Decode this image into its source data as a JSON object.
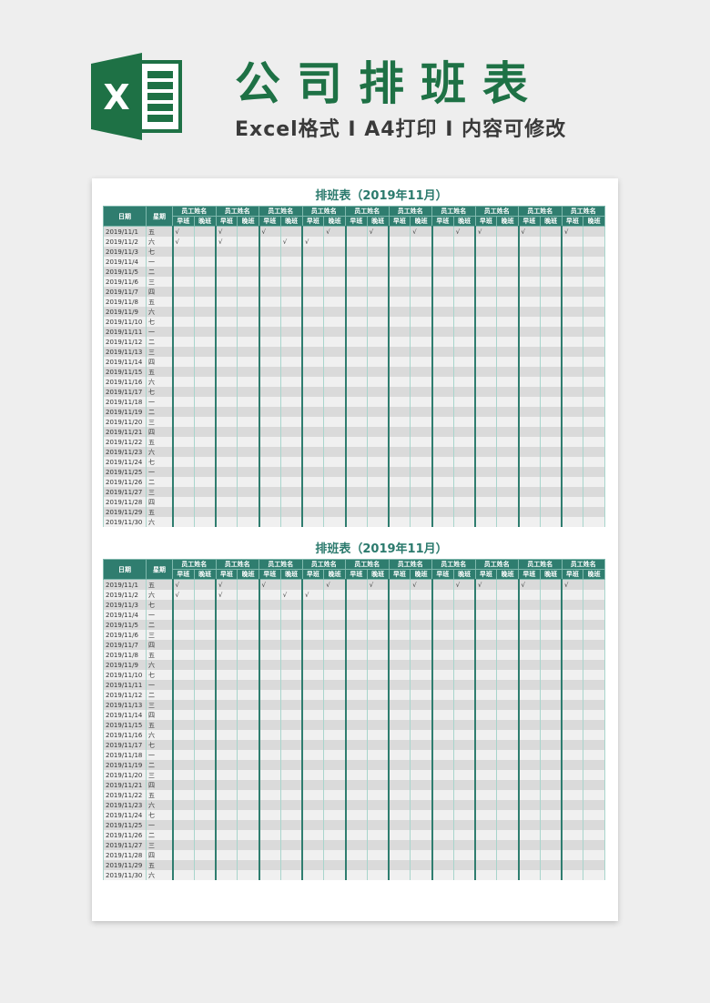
{
  "header": {
    "title": "公司排班表",
    "subtitle": "Excel格式 I A4打印 I 内容可修改",
    "logo_letter": "X"
  },
  "colors": {
    "brand": "#1e7145",
    "table_header": "#2f7d6f"
  },
  "sheet": {
    "title": "排班表（2019年11月）",
    "col_date": "日期",
    "col_week": "星期",
    "employee_label": "员工姓名",
    "shift_early": "早班",
    "shift_late": "晚班",
    "employee_count": 10,
    "rows": [
      {
        "date": "2019/11/1",
        "week": "五",
        "checks": [
          "√",
          "",
          "√",
          "",
          "√",
          "",
          "",
          "√",
          "",
          "√",
          "",
          "√",
          "",
          "√",
          "√",
          "",
          "√",
          "",
          "√",
          ""
        ]
      },
      {
        "date": "2019/11/2",
        "week": "六",
        "checks": [
          "√",
          "",
          "√",
          "",
          "",
          "√",
          "√",
          "",
          "",
          "",
          "",
          "",
          "",
          "",
          "",
          "",
          "",
          "",
          "",
          ""
        ]
      },
      {
        "date": "2019/11/3",
        "week": "七"
      },
      {
        "date": "2019/11/4",
        "week": "一"
      },
      {
        "date": "2019/11/5",
        "week": "二"
      },
      {
        "date": "2019/11/6",
        "week": "三"
      },
      {
        "date": "2019/11/7",
        "week": "四"
      },
      {
        "date": "2019/11/8",
        "week": "五"
      },
      {
        "date": "2019/11/9",
        "week": "六"
      },
      {
        "date": "2019/11/10",
        "week": "七"
      },
      {
        "date": "2019/11/11",
        "week": "一"
      },
      {
        "date": "2019/11/12",
        "week": "二"
      },
      {
        "date": "2019/11/13",
        "week": "三"
      },
      {
        "date": "2019/11/14",
        "week": "四"
      },
      {
        "date": "2019/11/15",
        "week": "五"
      },
      {
        "date": "2019/11/16",
        "week": "六"
      },
      {
        "date": "2019/11/17",
        "week": "七"
      },
      {
        "date": "2019/11/18",
        "week": "一"
      },
      {
        "date": "2019/11/19",
        "week": "二"
      },
      {
        "date": "2019/11/20",
        "week": "三"
      },
      {
        "date": "2019/11/21",
        "week": "四"
      },
      {
        "date": "2019/11/22",
        "week": "五"
      },
      {
        "date": "2019/11/23",
        "week": "六"
      },
      {
        "date": "2019/11/24",
        "week": "七"
      },
      {
        "date": "2019/11/25",
        "week": "一"
      },
      {
        "date": "2019/11/26",
        "week": "二"
      },
      {
        "date": "2019/11/27",
        "week": "三"
      },
      {
        "date": "2019/11/28",
        "week": "四"
      },
      {
        "date": "2019/11/29",
        "week": "五"
      },
      {
        "date": "2019/11/30",
        "week": "六"
      }
    ]
  }
}
